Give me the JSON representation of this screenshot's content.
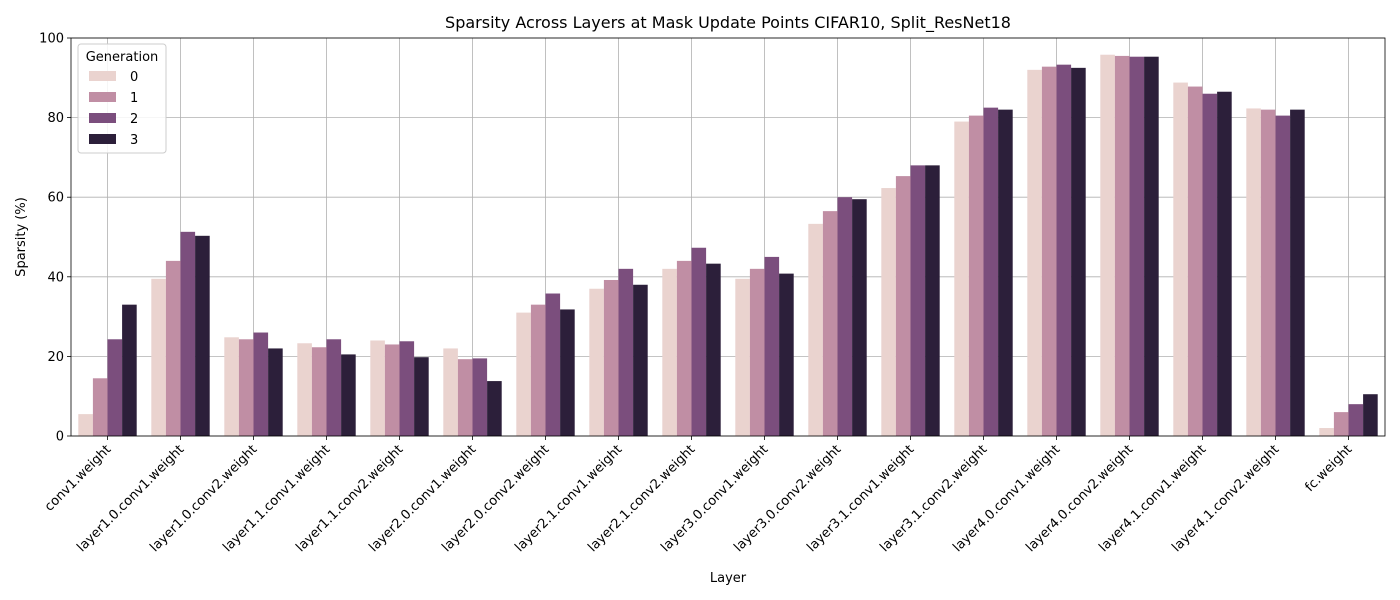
{
  "chart_data": {
    "type": "bar",
    "title": "Sparsity Across Layers at Mask Update Points CIFAR10, Split_ResNet18",
    "xlabel": "Layer",
    "ylabel": "Sparsity (%)",
    "ylim": [
      0,
      100
    ],
    "yticks": [
      0,
      20,
      40,
      60,
      80,
      100
    ],
    "grid": true,
    "legend": {
      "title": "Generation",
      "placement": "top-left"
    },
    "categories": [
      "conv1.weight",
      "layer1.0.conv1.weight",
      "layer1.0.conv2.weight",
      "layer1.1.conv1.weight",
      "layer1.1.conv2.weight",
      "layer2.0.conv1.weight",
      "layer2.0.conv2.weight",
      "layer2.1.conv1.weight",
      "layer2.1.conv2.weight",
      "layer3.0.conv1.weight",
      "layer3.0.conv2.weight",
      "layer3.1.conv1.weight",
      "layer3.1.conv2.weight",
      "layer4.0.conv1.weight",
      "layer4.0.conv2.weight",
      "layer4.1.conv1.weight",
      "layer4.1.conv2.weight",
      "fc.weight"
    ],
    "series": [
      {
        "name": "0",
        "color": "#ead3cf",
        "values": [
          5.5,
          39.5,
          24.8,
          23.3,
          24.0,
          22.0,
          31.0,
          37.0,
          42.0,
          39.5,
          53.3,
          62.3,
          79.0,
          92.0,
          95.8,
          88.8,
          82.3,
          2.0
        ]
      },
      {
        "name": "1",
        "color": "#c08ea4",
        "values": [
          14.5,
          44.0,
          24.3,
          22.3,
          23.0,
          19.3,
          33.0,
          39.2,
          44.0,
          42.0,
          56.5,
          65.3,
          80.5,
          92.8,
          95.5,
          87.8,
          82.0,
          6.0
        ]
      },
      {
        "name": "2",
        "color": "#7b4e7d",
        "values": [
          24.3,
          51.3,
          26.0,
          24.3,
          23.8,
          19.5,
          35.8,
          42.0,
          47.3,
          45.0,
          60.0,
          68.0,
          82.5,
          93.3,
          95.3,
          86.0,
          80.5,
          8.0
        ]
      },
      {
        "name": "3",
        "color": "#2c1f3a",
        "values": [
          33.0,
          50.3,
          22.0,
          20.5,
          19.8,
          13.8,
          31.8,
          38.0,
          43.3,
          40.8,
          59.5,
          68.0,
          82.0,
          92.5,
          95.3,
          86.5,
          82.0,
          10.5
        ]
      }
    ]
  }
}
